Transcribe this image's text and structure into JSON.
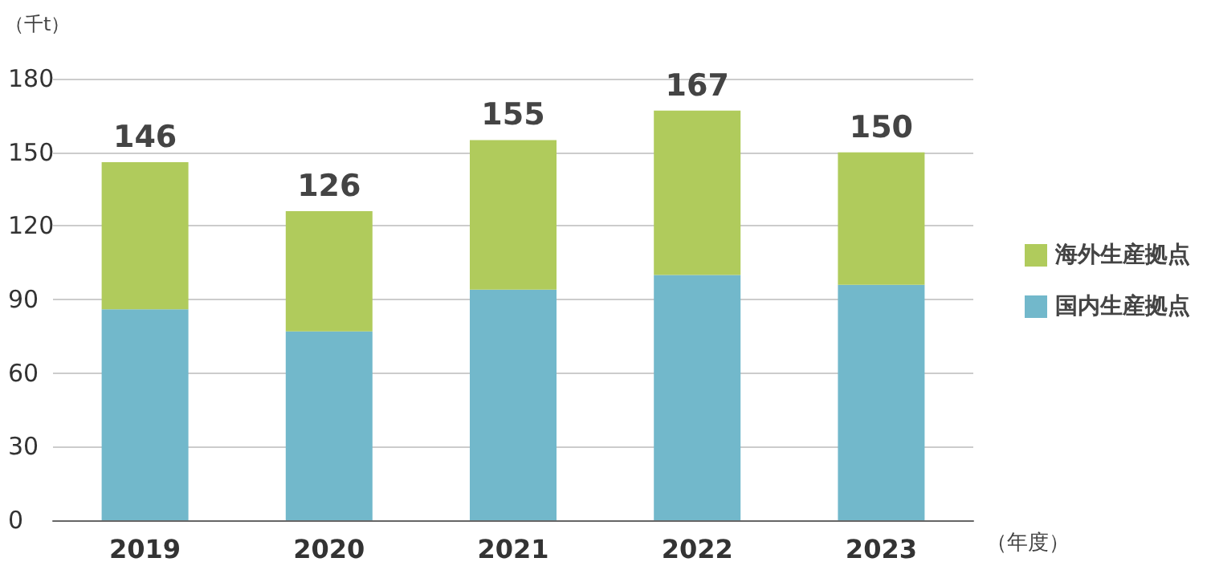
{
  "chart_data": {
    "type": "bar",
    "stacked": true,
    "ylabel": "（千t）",
    "xlabel": "（年度）",
    "categories": [
      "2019",
      "2020",
      "2021",
      "2022",
      "2023"
    ],
    "series": [
      {
        "name": "国内生産拠点",
        "color": "#72b8cb",
        "values": [
          86,
          77,
          94,
          100,
          96
        ]
      },
      {
        "name": "海外生産拠点",
        "color": "#b0cb5c",
        "values": [
          60,
          49,
          61,
          67,
          54
        ]
      }
    ],
    "totals": [
      "146",
      "126",
      "155",
      "167",
      "150"
    ],
    "ylim": [
      0,
      180
    ],
    "yticks": [
      0,
      30,
      60,
      90,
      120,
      150,
      180
    ],
    "grid": "y",
    "legend": "right"
  }
}
